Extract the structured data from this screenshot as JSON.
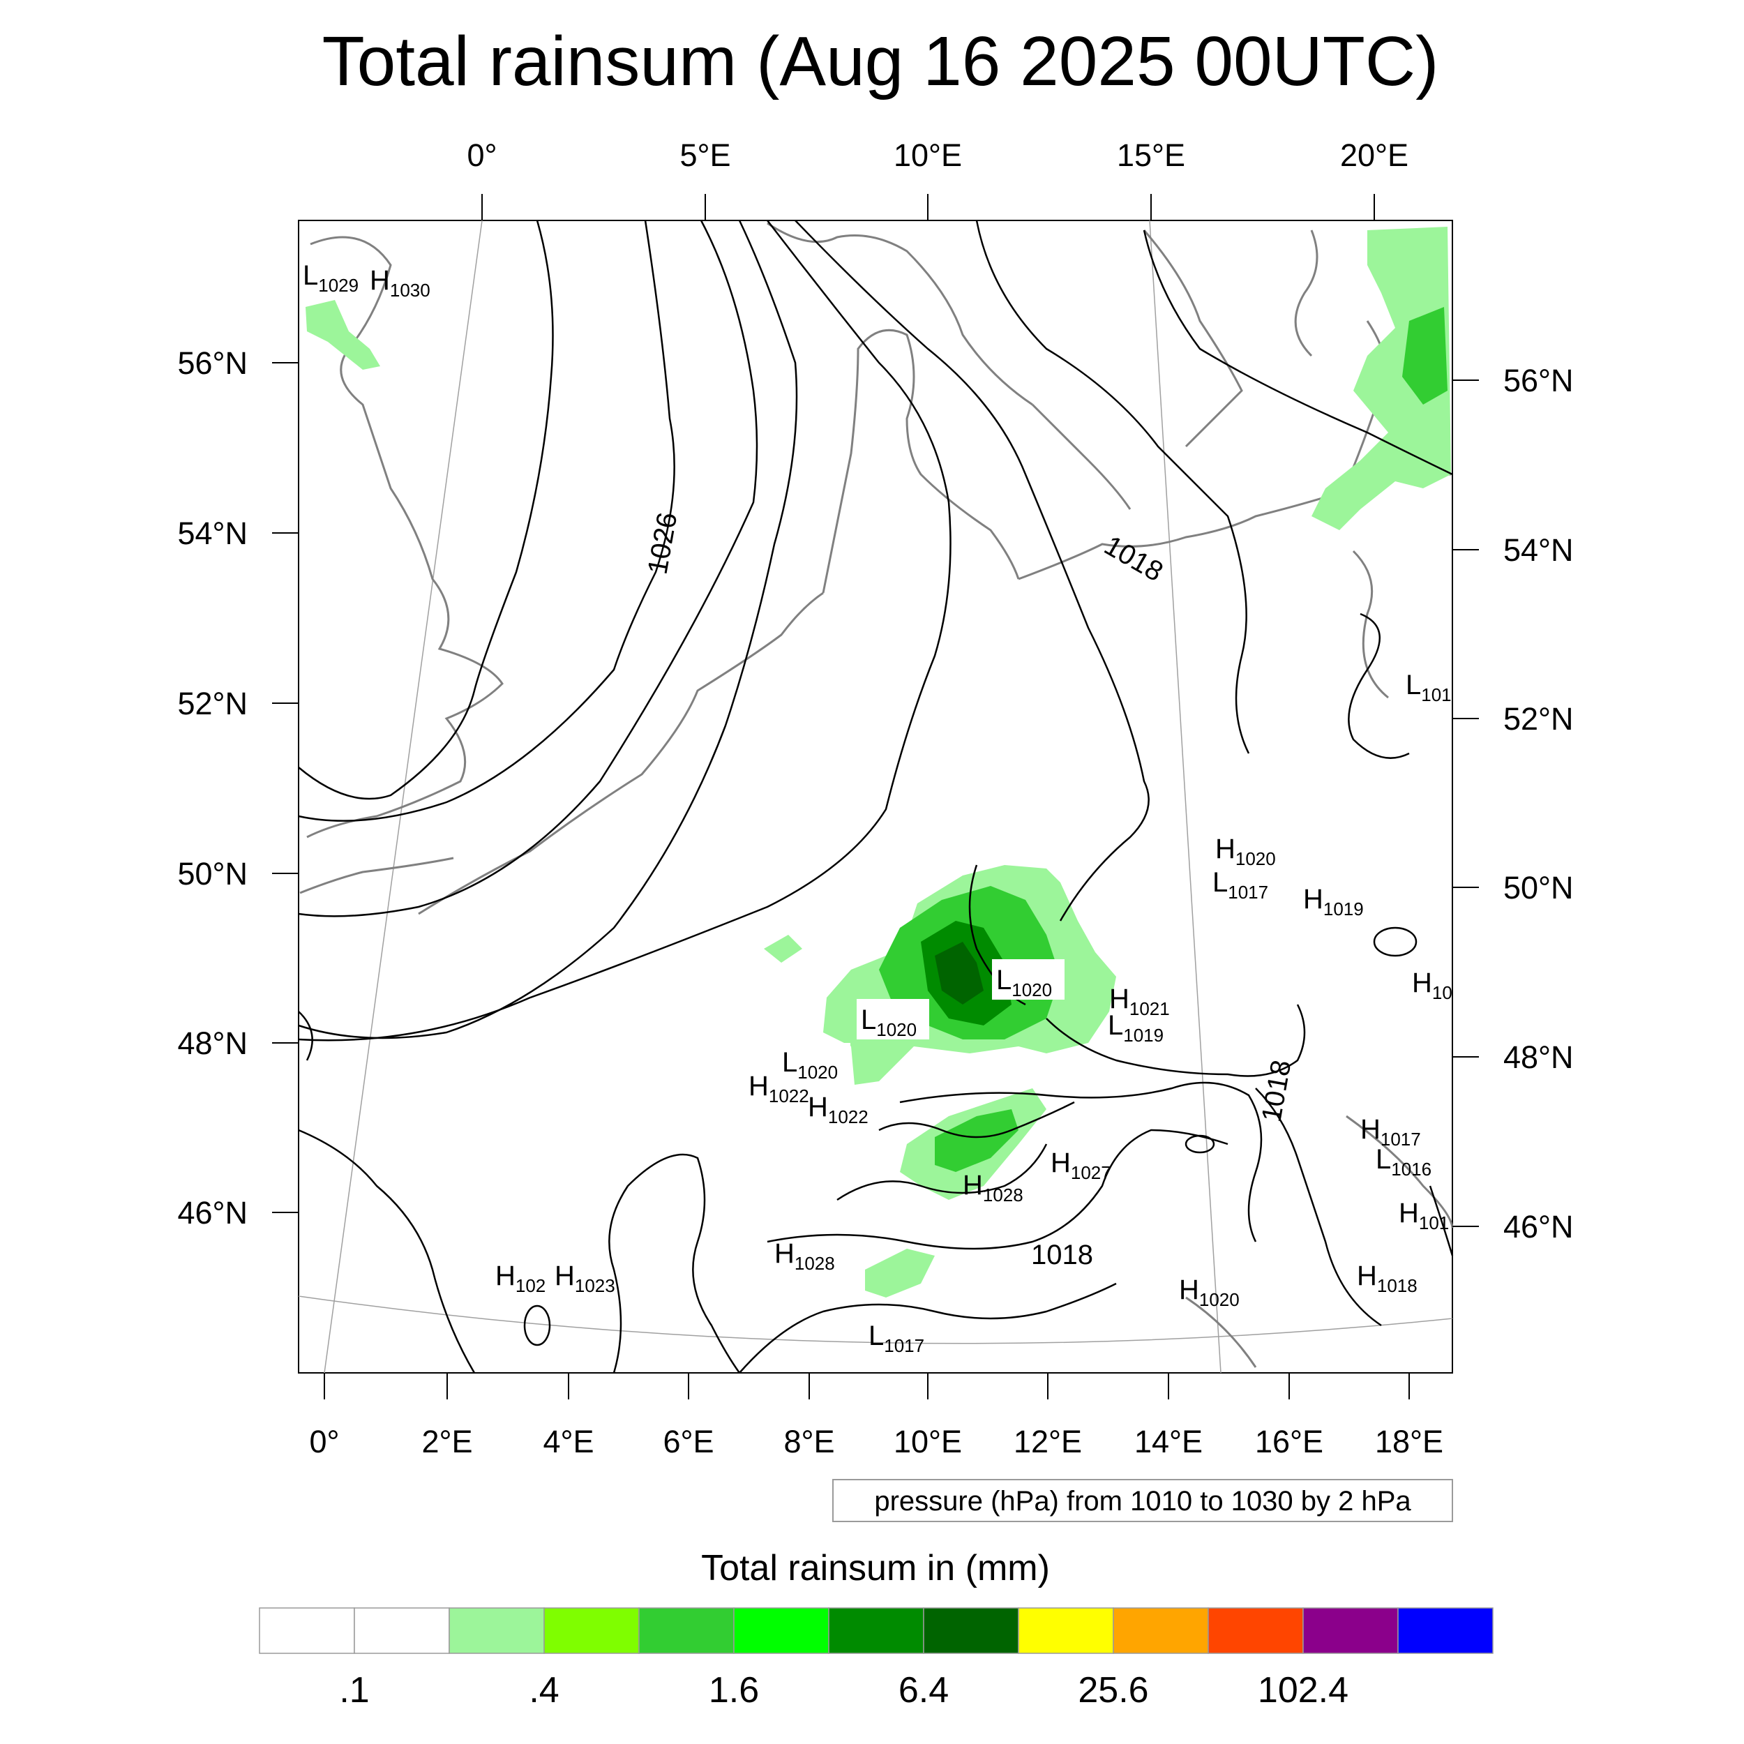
{
  "title": "Total rainsum (Aug 16 2025 00UTC)",
  "top_lon_labels": [
    "0°",
    "5°E",
    "10°E",
    "15°E",
    "20°E"
  ],
  "bottom_lon_labels": [
    "0°",
    "2°E",
    "4°E",
    "6°E",
    "8°E",
    "10°E",
    "12°E",
    "14°E",
    "16°E",
    "18°E"
  ],
  "left_lat_labels": [
    "56°N",
    "54°N",
    "52°N",
    "50°N",
    "48°N",
    "46°N"
  ],
  "right_lat_labels": [
    "56°N",
    "54°N",
    "52°N",
    "50°N",
    "48°N",
    "46°N"
  ],
  "contour_note": "pressure (hPa) from 1010 to 1030 by 2 hPa",
  "colorbar": {
    "title": "Total rainsum in (mm)",
    "colors": [
      "#ffffff",
      "#ffffff",
      "#9cf59a",
      "#7ffe00",
      "#32cd32",
      "#00ff00",
      "#008b00",
      "#006400",
      "#ffff00",
      "#ffa500",
      "#ff4500",
      "#8b008b",
      "#0000ff"
    ],
    "labels": [
      ".1",
      ".4",
      "1.6",
      "6.4",
      "25.6",
      "102.4"
    ]
  },
  "isobar_labels": [
    "1026",
    "1018",
    "1018",
    "1018"
  ],
  "pressure_centers": [
    {
      "t": "L",
      "v": "1029"
    },
    {
      "t": "H",
      "v": "1030"
    },
    {
      "t": "L",
      "v": "101"
    },
    {
      "t": "H",
      "v": "1020"
    },
    {
      "t": "L",
      "v": "1017"
    },
    {
      "t": "H",
      "v": "1019"
    },
    {
      "t": "H",
      "v": "10"
    },
    {
      "t": "L",
      "v": "1020"
    },
    {
      "t": "H",
      "v": "1021"
    },
    {
      "t": "L",
      "v": "1019"
    },
    {
      "t": "L",
      "v": "1020"
    },
    {
      "t": "L",
      "v": "1020"
    },
    {
      "t": "H",
      "v": "1022"
    },
    {
      "t": "H",
      "v": "1022"
    },
    {
      "t": "H",
      "v": "1017"
    },
    {
      "t": "L",
      "v": "1016"
    },
    {
      "t": "H",
      "v": "1027"
    },
    {
      "t": "H",
      "v": "1028"
    },
    {
      "t": "H",
      "v": "101"
    },
    {
      "t": "H",
      "v": "1028"
    },
    {
      "t": "H",
      "v": "102"
    },
    {
      "t": "H",
      "v": "1023"
    },
    {
      "t": "H",
      "v": "1018"
    },
    {
      "t": "H",
      "v": "1020"
    },
    {
      "t": "L",
      "v": "1017"
    }
  ]
}
